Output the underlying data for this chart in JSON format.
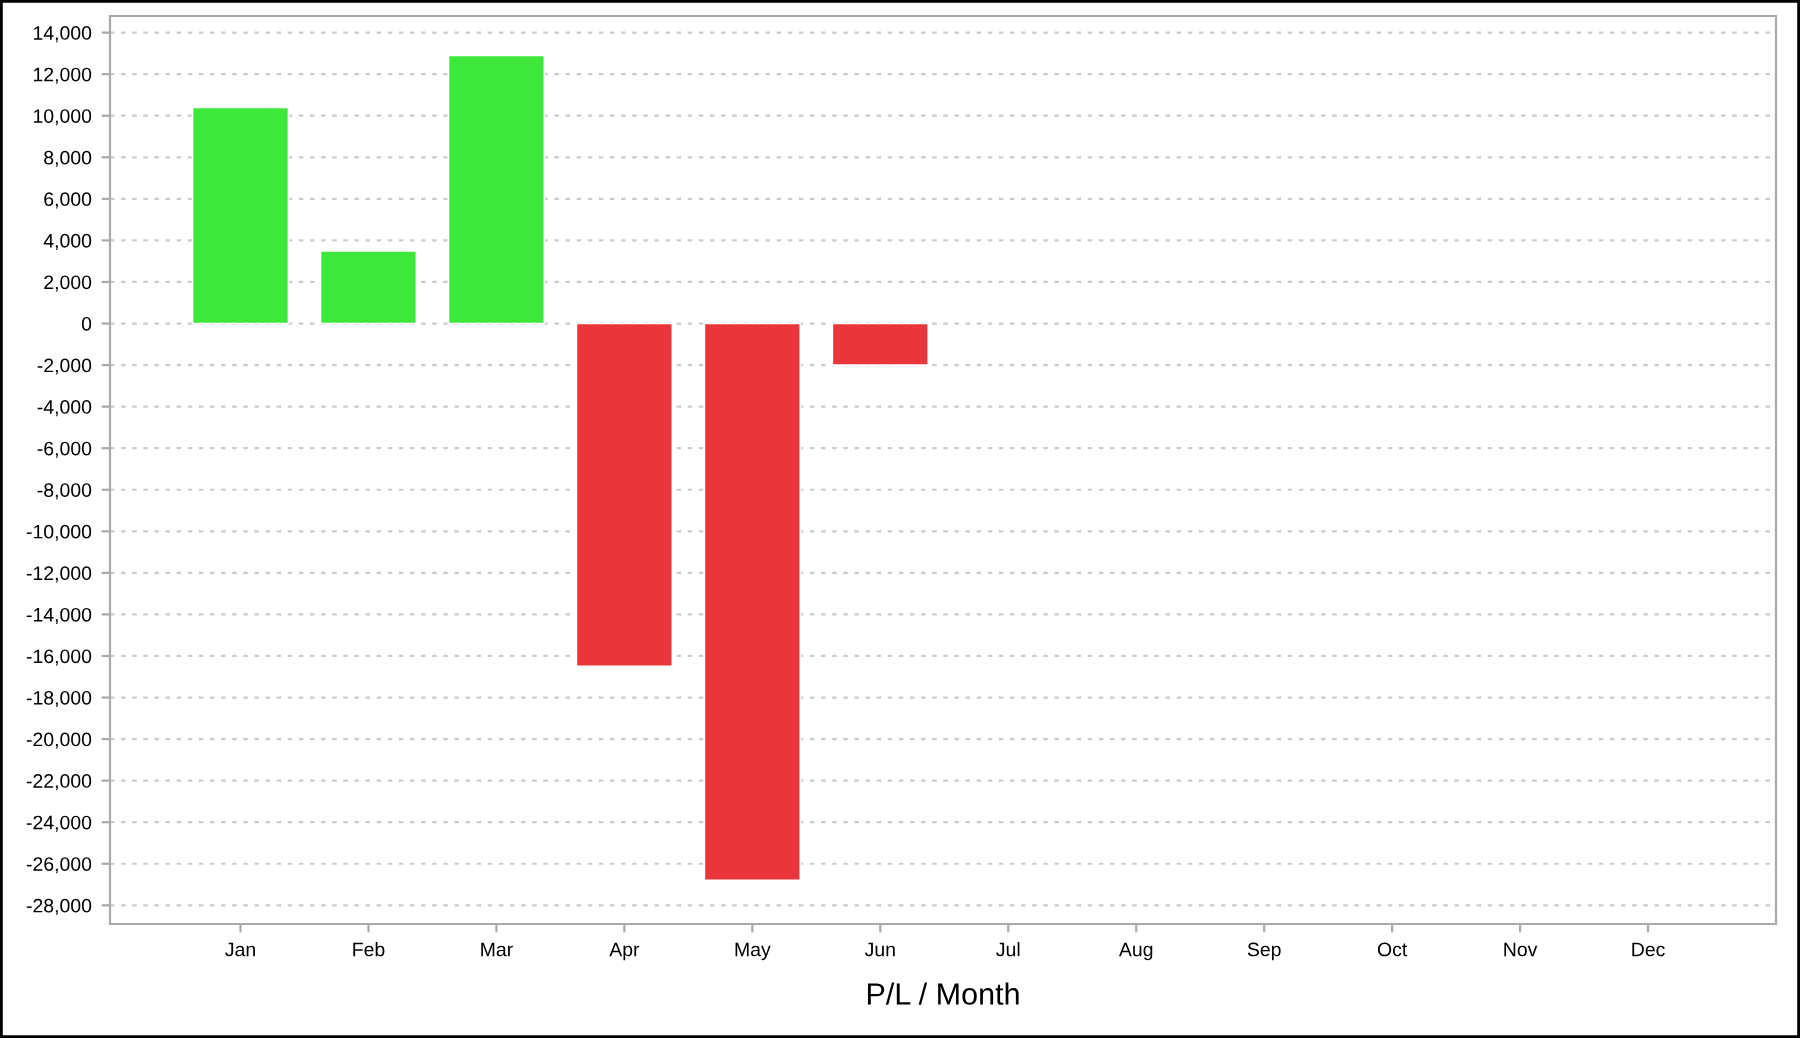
{
  "chart_data": {
    "type": "bar",
    "xlabel": "P/L / Month",
    "categories": [
      "Jan",
      "Feb",
      "Mar",
      "Apr",
      "May",
      "Jun",
      "Jul",
      "Aug",
      "Sep",
      "Oct",
      "Nov",
      "Dec"
    ],
    "values": [
      10400,
      3500,
      12900,
      -16500,
      -26800,
      -2000,
      null,
      null,
      null,
      null,
      null,
      null
    ],
    "colors": [
      "#3de83b",
      "#3de83b",
      "#3de83b",
      "#e8363b",
      "#e8363b",
      "#e8363b",
      null,
      null,
      null,
      null,
      null,
      null
    ],
    "ylim": [
      -28900,
      14800
    ],
    "yticks": [
      {
        "value": 14000,
        "label": "14,000"
      },
      {
        "value": 12000,
        "label": "12,000"
      },
      {
        "value": 10000,
        "label": "10,000"
      },
      {
        "value": 8000,
        "label": "8,000"
      },
      {
        "value": 6000,
        "label": "6,000"
      },
      {
        "value": 4000,
        "label": "4,000"
      },
      {
        "value": 2000,
        "label": "2,000"
      },
      0,
      {
        "value": -2000,
        "label": "-2,000"
      },
      {
        "value": -4000,
        "label": "-4,000"
      },
      {
        "value": -6000,
        "label": "-6,000"
      },
      {
        "value": -8000,
        "label": "-8,000"
      },
      {
        "value": -10000,
        "label": "-10,000"
      },
      {
        "value": -12000,
        "label": "-12,000"
      },
      {
        "value": -14000,
        "label": "-14,000"
      },
      {
        "value": -16000,
        "label": "-16,000"
      },
      {
        "value": -18000,
        "label": "-18,000"
      },
      {
        "value": -20000,
        "label": "-20,000"
      },
      {
        "value": -22000,
        "label": "-22,000"
      },
      {
        "value": -24000,
        "label": "-24,000"
      },
      {
        "value": -26000,
        "label": "-26,000"
      },
      {
        "value": -28000,
        "label": "-28,000"
      }
    ],
    "grid": "y"
  }
}
